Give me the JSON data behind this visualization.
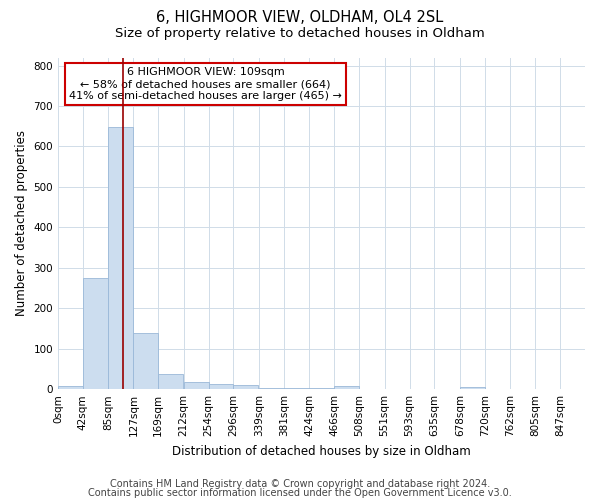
{
  "title_line1": "6, HIGHMOOR VIEW, OLDHAM, OL4 2SL",
  "title_line2": "Size of property relative to detached houses in Oldham",
  "xlabel": "Distribution of detached houses by size in Oldham",
  "ylabel": "Number of detached properties",
  "bin_labels": [
    "0sqm",
    "42sqm",
    "85sqm",
    "127sqm",
    "169sqm",
    "212sqm",
    "254sqm",
    "296sqm",
    "339sqm",
    "381sqm",
    "424sqm",
    "466sqm",
    "508sqm",
    "551sqm",
    "593sqm",
    "635sqm",
    "678sqm",
    "720sqm",
    "762sqm",
    "805sqm",
    "847sqm"
  ],
  "bin_edges": [
    0,
    42,
    85,
    127,
    169,
    212,
    254,
    296,
    339,
    381,
    424,
    466,
    508,
    551,
    593,
    635,
    678,
    720,
    762,
    805,
    847
  ],
  "bar_heights": [
    8,
    275,
    648,
    140,
    38,
    18,
    12,
    10,
    4,
    4,
    3,
    7,
    0,
    0,
    0,
    0,
    5,
    0,
    0,
    0,
    0
  ],
  "bar_color": "#ccddef",
  "bar_edgecolor": "#9ab8d8",
  "grid_color": "#d0dce8",
  "bg_color": "#ffffff",
  "fig_color": "#ffffff",
  "property_size": 109,
  "property_line_color": "#990000",
  "annotation_text": "6 HIGHMOOR VIEW: 109sqm\n← 58% of detached houses are smaller (664)\n41% of semi-detached houses are larger (465) →",
  "annotation_box_color": "#ffffff",
  "annotation_box_edgecolor": "#cc0000",
  "ylim": [
    0,
    820
  ],
  "yticks": [
    0,
    100,
    200,
    300,
    400,
    500,
    600,
    700,
    800
  ],
  "footnote_line1": "Contains HM Land Registry data © Crown copyright and database right 2024.",
  "footnote_line2": "Contains public sector information licensed under the Open Government Licence v3.0.",
  "title_fontsize": 10.5,
  "subtitle_fontsize": 9.5,
  "axis_label_fontsize": 8.5,
  "tick_fontsize": 7.5,
  "annotation_fontsize": 8,
  "footnote_fontsize": 7
}
